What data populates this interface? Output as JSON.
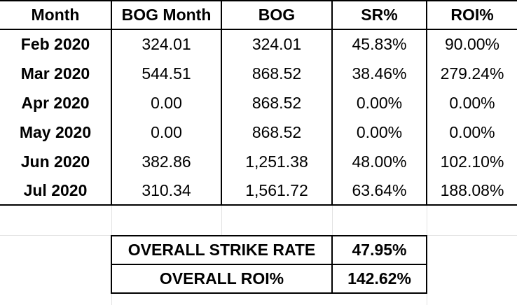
{
  "table": {
    "headers": [
      "Month",
      "BOG Month",
      "BOG",
      "SR%",
      "ROI%"
    ],
    "rows": [
      [
        "Feb 2020",
        "324.01",
        "324.01",
        "45.83%",
        "90.00%"
      ],
      [
        "Mar 2020",
        "544.51",
        "868.52",
        "38.46%",
        "279.24%"
      ],
      [
        "Apr 2020",
        "0.00",
        "868.52",
        "0.00%",
        "0.00%"
      ],
      [
        "May 2020",
        "0.00",
        "868.52",
        "0.00%",
        "0.00%"
      ],
      [
        "Jun 2020",
        "382.86",
        "1,251.38",
        "48.00%",
        "102.10%"
      ],
      [
        "Jul 2020",
        "310.34",
        "1,561.72",
        "63.64%",
        "188.08%"
      ]
    ]
  },
  "summary": {
    "strike_rate_label": "OVERALL STRIKE RATE",
    "strike_rate_value": "47.95%",
    "roi_label": "OVERALL ROI%",
    "roi_value": "142.62%"
  }
}
